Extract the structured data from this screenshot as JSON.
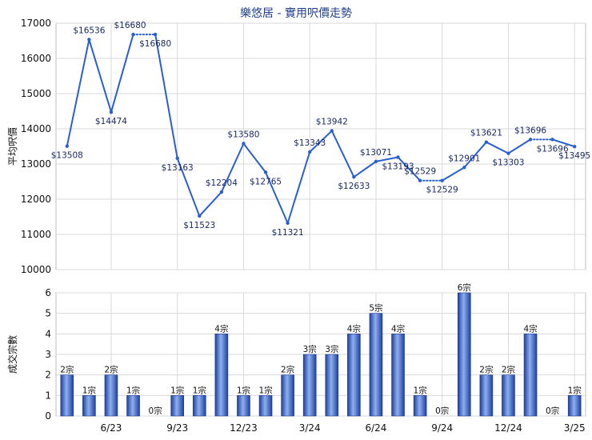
{
  "title": "樂悠居 - 實用呎價走勢",
  "colors": {
    "line": "#2a5fd0",
    "bar_dark": "#1e3f9e",
    "bar_light": "#8eb0ee",
    "grid": "#d9d9d9"
  },
  "chart_data": [
    {
      "type": "line",
      "ylabel": "平均呎價",
      "ylim": [
        10000,
        17000
      ],
      "yticks": [
        10000,
        11000,
        12000,
        13000,
        14000,
        15000,
        16000,
        17000
      ],
      "grid": true,
      "slots": 24,
      "points": [
        {
          "slot": 0,
          "value": 13508,
          "label": "$13508"
        },
        {
          "slot": 1,
          "value": 16536,
          "label": "$16536"
        },
        {
          "slot": 2,
          "value": 14474,
          "label": "$14474"
        },
        {
          "slot": 3,
          "value": 16680,
          "label": "$16680"
        },
        {
          "slot": 4,
          "value": 16680,
          "label": "$16680"
        },
        {
          "slot": 5,
          "value": 13163,
          "label": "$13163"
        },
        {
          "slot": 6,
          "value": 11523,
          "label": "$11523"
        },
        {
          "slot": 7,
          "value": 12204,
          "label": "$12204"
        },
        {
          "slot": 8,
          "value": 13580,
          "label": "$13580"
        },
        {
          "slot": 9,
          "value": 12765,
          "label": "$12765"
        },
        {
          "slot": 10,
          "value": 11321,
          "label": "$11321"
        },
        {
          "slot": 11,
          "value": 13343,
          "label": "$13343"
        },
        {
          "slot": 12,
          "value": 13942,
          "label": "$13942"
        },
        {
          "slot": 13,
          "value": 12633,
          "label": "$12633"
        },
        {
          "slot": 14,
          "value": 13071,
          "label": "$13071"
        },
        {
          "slot": 15,
          "value": 13193,
          "label": "$13193"
        },
        {
          "slot": 16,
          "value": 12529,
          "label": "$12529"
        },
        {
          "slot": 17,
          "value": 12529,
          "label": "$12529"
        },
        {
          "slot": 18,
          "value": 12901,
          "label": "$12901"
        },
        {
          "slot": 19,
          "value": 13621,
          "label": "$13621"
        },
        {
          "slot": 20,
          "value": 13303,
          "label": "$13303"
        },
        {
          "slot": 21,
          "value": 13696,
          "label": "$13696"
        },
        {
          "slot": 22,
          "value": 13696,
          "label": "$13696"
        },
        {
          "slot": 23,
          "value": 13495,
          "label": "$13495"
        }
      ],
      "dotted_segments": [
        [
          3,
          4
        ],
        [
          16,
          17
        ],
        [
          21,
          22
        ]
      ]
    },
    {
      "type": "bar",
      "ylabel": "成交宗數",
      "ylim": [
        0,
        6
      ],
      "yticks": [
        0,
        1,
        2,
        3,
        4,
        5,
        6
      ],
      "grid": true,
      "values": [
        2,
        1,
        2,
        1,
        0,
        1,
        1,
        4,
        1,
        1,
        2,
        3,
        3,
        4,
        5,
        4,
        1,
        0,
        6,
        2,
        2,
        4,
        0,
        1
      ],
      "labels": [
        "2宗",
        "1宗",
        "2宗",
        "1宗",
        "0宗",
        "1宗",
        "1宗",
        "4宗",
        "1宗",
        "1宗",
        "2宗",
        "3宗",
        "3宗",
        "4宗",
        "5宗",
        "4宗",
        "1宗",
        "0宗",
        "6宗",
        "2宗",
        "2宗",
        "4宗",
        "0宗",
        "1宗"
      ],
      "x_ticks": [
        {
          "slot": 2,
          "label": "6/23"
        },
        {
          "slot": 5,
          "label": "9/23"
        },
        {
          "slot": 8,
          "label": "12/23"
        },
        {
          "slot": 11,
          "label": "3/24"
        },
        {
          "slot": 14,
          "label": "6/24"
        },
        {
          "slot": 17,
          "label": "9/24"
        },
        {
          "slot": 20,
          "label": "12/24"
        },
        {
          "slot": 23,
          "label": "3/25"
        }
      ]
    }
  ]
}
